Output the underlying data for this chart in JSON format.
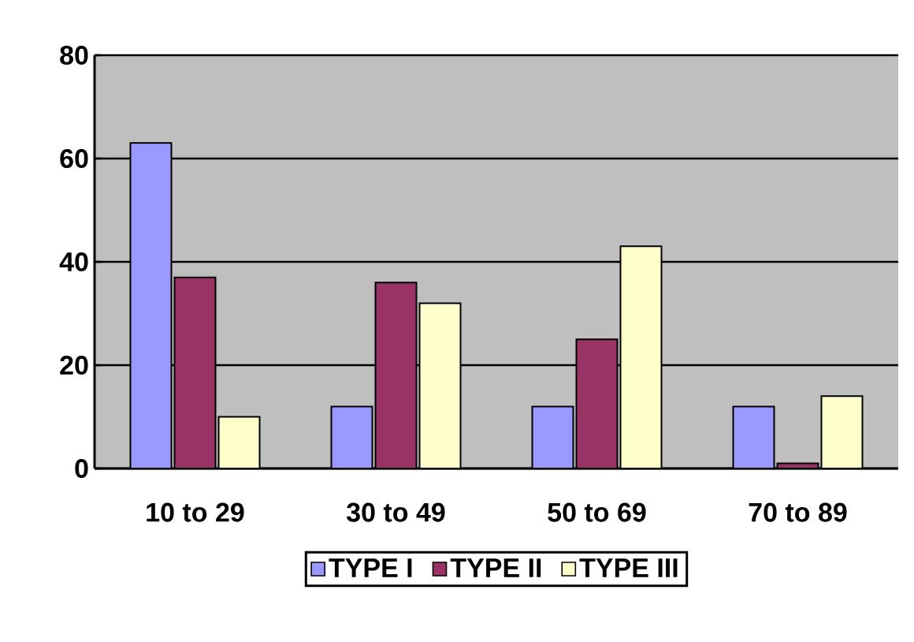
{
  "chart_data": {
    "type": "bar",
    "categories": [
      "10 to 29",
      "30 to 49",
      "50 to 69",
      "70 to 89"
    ],
    "series": [
      {
        "name": "TYPE I",
        "color": "#9999ff",
        "values": [
          63,
          12,
          12,
          12
        ]
      },
      {
        "name": "TYPE II",
        "color": "#993366",
        "values": [
          37,
          36,
          25,
          1
        ]
      },
      {
        "name": "TYPE III",
        "color": "#ffffcc",
        "values": [
          10,
          32,
          43,
          14
        ]
      }
    ],
    "ylim": [
      0,
      80
    ],
    "yticks": [
      0,
      20,
      40,
      60,
      80
    ],
    "grid": "y",
    "legend": "bottom"
  }
}
